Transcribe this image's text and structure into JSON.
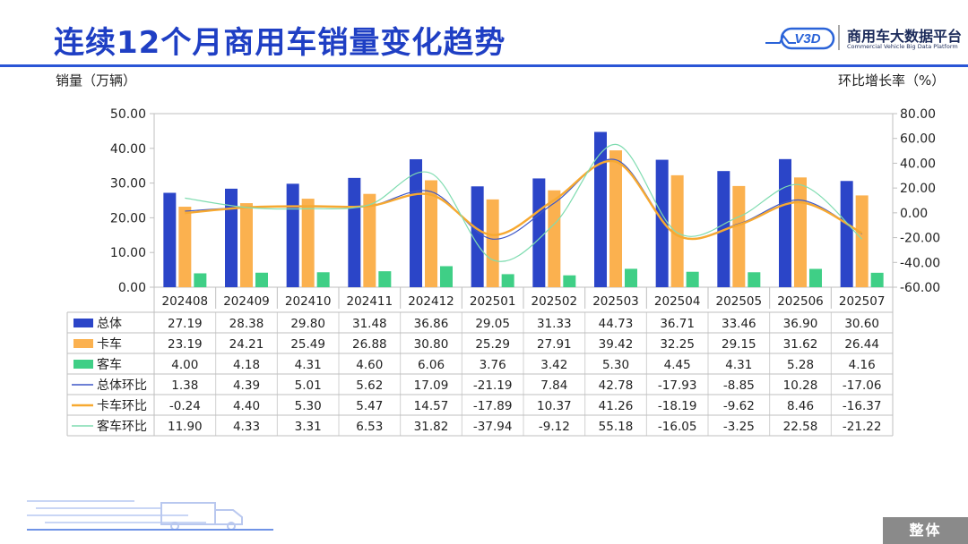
{
  "page": {
    "title": "连续12个月商用车销量变化趋势",
    "left_axis_unit": "销量（万辆）",
    "right_axis_unit": "环比增长率（%）",
    "footer_tag": "整体"
  },
  "logo": {
    "mark": "V3D",
    "name": "商用车大数据平台",
    "subtitle": "Commercial Vehicle Big Data Platform"
  },
  "colors": {
    "title": "#1f3fc4",
    "total": "#2b45c8",
    "truck": "#fbb14f",
    "bus": "#3fcf86",
    "total_line": "#3d57c7",
    "truck_line": "#f7a931",
    "bus_line": "#7fdcb0"
  },
  "chart_data": {
    "type": "bar",
    "categories": [
      "202408",
      "202409",
      "202410",
      "202411",
      "202412",
      "202501",
      "202502",
      "202503",
      "202504",
      "202505",
      "202506",
      "202507"
    ],
    "series": [
      {
        "name": "总体",
        "type": "bar",
        "axis": "left",
        "values": [
          27.19,
          28.38,
          29.8,
          31.48,
          36.86,
          29.05,
          31.33,
          44.73,
          36.71,
          33.46,
          36.9,
          30.6
        ],
        "labels": [
          "27.19",
          "28.38",
          "29.80",
          "31.48",
          "36.86",
          "29.05",
          "31.33",
          "44.73",
          "36.71",
          "33.46",
          "36.90",
          "30.60"
        ]
      },
      {
        "name": "卡车",
        "type": "bar",
        "axis": "left",
        "values": [
          23.19,
          24.21,
          25.49,
          26.88,
          30.8,
          25.29,
          27.91,
          39.42,
          32.25,
          29.15,
          31.62,
          26.44
        ],
        "labels": [
          "23.19",
          "24.21",
          "25.49",
          "26.88",
          "30.80",
          "25.29",
          "27.91",
          "39.42",
          "32.25",
          "29.15",
          "31.62",
          "26.44"
        ]
      },
      {
        "name": "客车",
        "type": "bar",
        "axis": "left",
        "values": [
          4.0,
          4.18,
          4.31,
          4.6,
          6.06,
          3.76,
          3.42,
          5.3,
          4.45,
          4.31,
          5.28,
          4.16
        ],
        "labels": [
          "4.00",
          "4.18",
          "4.31",
          "4.60",
          "6.06",
          "3.76",
          "3.42",
          "5.30",
          "4.45",
          "4.31",
          "5.28",
          "4.16"
        ]
      },
      {
        "name": "总体环比",
        "type": "line",
        "axis": "right",
        "values": [
          1.38,
          4.39,
          5.01,
          5.62,
          17.09,
          -21.19,
          7.84,
          42.78,
          -17.93,
          -8.85,
          10.28,
          -17.06
        ],
        "labels": [
          "1.38",
          "4.39",
          "5.01",
          "5.62",
          "17.09",
          "-21.19",
          "7.84",
          "42.78",
          "-17.93",
          "-8.85",
          "10.28",
          "-17.06"
        ]
      },
      {
        "name": "卡车环比",
        "type": "line",
        "axis": "right",
        "values": [
          -0.24,
          4.4,
          5.3,
          5.47,
          14.57,
          -17.89,
          10.37,
          41.26,
          -18.19,
          -9.62,
          8.46,
          -16.37
        ],
        "labels": [
          "-0.24",
          "4.40",
          "5.30",
          "5.47",
          "14.57",
          "-17.89",
          "10.37",
          "41.26",
          "-18.19",
          "-9.62",
          "8.46",
          "-16.37"
        ]
      },
      {
        "name": "客车环比",
        "type": "line",
        "axis": "right",
        "values": [
          11.9,
          4.33,
          3.31,
          6.53,
          31.82,
          -37.94,
          -9.12,
          55.18,
          -16.05,
          -3.25,
          22.58,
          -21.22
        ],
        "labels": [
          "11.90",
          "4.33",
          "3.31",
          "6.53",
          "31.82",
          "-37.94",
          "-9.12",
          "55.18",
          "-16.05",
          "-3.25",
          "22.58",
          "-21.22"
        ]
      }
    ],
    "y_left": {
      "range": [
        0,
        50
      ],
      "ticks": [
        "0.00",
        "10.00",
        "20.00",
        "30.00",
        "40.00",
        "50.00"
      ]
    },
    "y_right": {
      "range": [
        -60,
        80
      ],
      "ticks": [
        "-60.00",
        "-40.00",
        "-20.00",
        "0.00",
        "20.00",
        "40.00",
        "60.00",
        "80.00"
      ]
    },
    "grid": false,
    "legend": "data-table-below"
  }
}
